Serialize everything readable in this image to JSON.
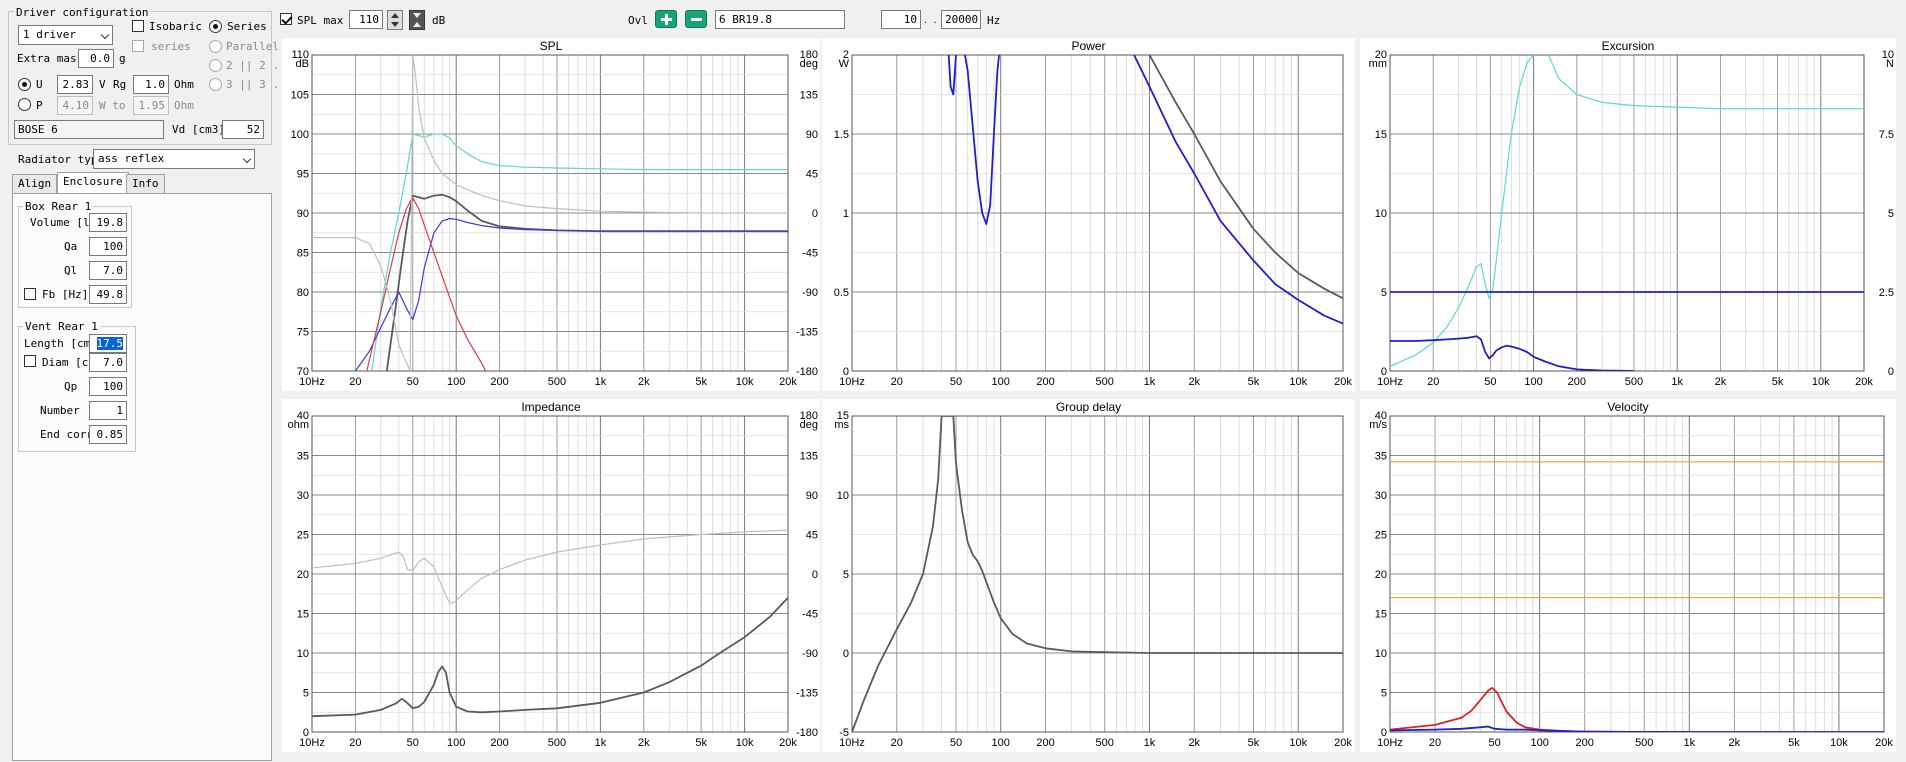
{
  "driver": {
    "title": "Driver configuration",
    "count": "1 driver",
    "isobaric": "Isobaric",
    "series_label": "series",
    "series_radio": "Series",
    "parallel": "Parallel",
    "opt_2x2": "2 || 2 .",
    "opt_3x3": "3 || 3 .",
    "extra_mass_label": "Extra mass",
    "extra_mass": "0.0",
    "extra_mass_unit": "g",
    "u_label": "U",
    "u_value": "2.83",
    "u_unit": "V",
    "rg_label": "Rg",
    "rg_value": "1.0",
    "rg_unit": "Ohm",
    "p_label": "P",
    "p_value": "4.10",
    "w_to": "W to",
    "p_ohm": "1.95",
    "p_ohm_unit": "Ohm",
    "name": "BOSE 6",
    "vd_label": "Vd [cm3]",
    "vd_value": "52"
  },
  "radiator": {
    "label": "Radiator type",
    "value": "ass reflex"
  },
  "tabs": [
    "Align",
    "Enclosure",
    "Info"
  ],
  "box": {
    "title": "Box Rear 1",
    "volume_label": "Volume [l",
    "volume": "19.8",
    "qa_label": "Qa",
    "qa": "100",
    "ql_label": "Ql",
    "ql": "7.0",
    "fb_label": "Fb [Hz]",
    "fb": "49.8"
  },
  "vent": {
    "title": "Vent Rear 1",
    "length_label": "Length [cm",
    "length": "17.5",
    "diam_label": "Diam [cm",
    "diam": "7.0",
    "qp_label": "Qp",
    "qp": "100",
    "number_label": "Number",
    "number": "1",
    "endcorr_label": "End corr",
    "endcorr": "0.85"
  },
  "toolbar": {
    "spl_max_label": "SPL max",
    "spl_max": "110",
    "spl_unit": "dB",
    "ovl_label": "Ovl",
    "project": "6 BR19.8",
    "f_min": "10",
    "f_sep": ". . .",
    "f_max": "20000",
    "f_unit": "Hz"
  },
  "chart_data": [
    {
      "type": "line",
      "title": "SPL",
      "ylabel": "dB",
      "y2label": "deg",
      "xlim": [
        10,
        20000
      ],
      "xscale": "log",
      "xticks": [
        "10Hz",
        "20",
        "50",
        "100",
        "200",
        "500",
        "1k",
        "2k",
        "5k",
        "10k",
        "20k"
      ],
      "ylim": [
        70,
        110
      ],
      "yticks": [
        "110",
        "105",
        "100",
        "95",
        "90",
        "85",
        "80",
        "75",
        "70"
      ],
      "y2lim": [
        -180,
        180
      ],
      "y2ticks": [
        "180",
        "135",
        "90",
        "45",
        "0",
        "-45",
        "-90",
        "-135",
        "-180"
      ],
      "series": [
        {
          "color": "#5ed6d6",
          "axis": "y",
          "x": [
            26,
            30,
            35,
            40,
            45,
            50,
            60,
            70,
            80,
            90,
            100,
            120,
            150,
            200,
            300,
            500,
            1000,
            2000,
            5000,
            10000,
            20000
          ],
          "y": [
            70,
            78,
            85,
            90,
            95,
            100,
            99.6,
            100,
            100,
            99.5,
            98.5,
            97.5,
            96.5,
            96,
            95.8,
            95.7,
            95.6,
            95.5,
            95.5,
            95.5,
            95.5
          ]
        },
        {
          "color": "#5a5a5a",
          "axis": "y",
          "x": [
            33,
            38,
            42,
            46,
            50,
            55,
            60,
            70,
            80,
            90,
            100,
            120,
            150,
            200,
            300,
            500,
            1000,
            2000,
            5000,
            10000,
            20000
          ],
          "y": [
            70,
            78,
            84,
            89,
            92.2,
            92,
            91.8,
            92.2,
            92.3,
            92,
            91.5,
            90.3,
            89,
            88.3,
            88,
            87.8,
            87.7,
            87.7,
            87.7,
            87.7,
            87.7
          ]
        },
        {
          "color": "#3a3adf",
          "axis": "y",
          "x": [
            20,
            25,
            30,
            35,
            40,
            45,
            50,
            55,
            60,
            70,
            80,
            90,
            100,
            120,
            150,
            200,
            300,
            500,
            1000,
            2000,
            5000,
            10000,
            20000
          ],
          "y": [
            70,
            72.5,
            75.5,
            78,
            80,
            78,
            76.5,
            79,
            83,
            87.5,
            89,
            89.3,
            89.2,
            88.8,
            88.4,
            88.1,
            87.9,
            87.8,
            87.7,
            87.7,
            87.7,
            87.7,
            87.7
          ]
        },
        {
          "color": "#d94040",
          "axis": "y",
          "x": [
            24,
            30,
            35,
            40,
            45,
            49.8,
            55,
            60,
            70,
            80,
            100,
            120,
            150,
            160
          ],
          "y": [
            70,
            77.5,
            83,
            87.5,
            90.5,
            92,
            90.5,
            88.5,
            85,
            82,
            77,
            74,
            71,
            70
          ]
        },
        {
          "color": "#bfbfbf",
          "axis": "y2",
          "x": [
            10,
            20,
            25,
            30,
            35,
            40,
            45,
            48,
            50,
            52,
            55,
            60,
            70,
            80,
            100,
            150,
            200,
            300,
            500,
            1000,
            2000,
            5000,
            10000,
            20000
          ],
          "y": [
            -28,
            -28,
            -35,
            -60,
            -100,
            -150,
            -170,
            -180,
            180,
            160,
            120,
            85,
            60,
            45,
            32,
            20,
            14,
            8,
            5,
            2,
            1,
            0,
            0,
            0
          ]
        }
      ]
    },
    {
      "type": "line",
      "title": "Power",
      "ylabel": "W",
      "xlim": [
        10,
        20000
      ],
      "xscale": "log",
      "xticks": [
        "10Hz",
        "20",
        "50",
        "100",
        "200",
        "500",
        "1k",
        "2k",
        "5k",
        "10k",
        "20k"
      ],
      "ylim": [
        0,
        2
      ],
      "yticks": [
        "2",
        "1.5",
        "1",
        "0.5",
        "0"
      ],
      "series": [
        {
          "color": "#5a5a5a",
          "x": [
            900,
            1000,
            1500,
            2000,
            3000,
            5000,
            7000,
            10000,
            15000,
            20000
          ],
          "y": [
            2.1,
            2.0,
            1.7,
            1.5,
            1.2,
            0.9,
            0.75,
            0.62,
            0.52,
            0.46
          ]
        },
        {
          "color": "#1f1fcc",
          "x": [
            44,
            46,
            48,
            50,
            55,
            60,
            70,
            75,
            80,
            85,
            90,
            95,
            100
          ],
          "y": [
            2.1,
            1.8,
            1.75,
            2.0,
            2.1,
            1.9,
            1.2,
            1.0,
            0.93,
            1.05,
            1.5,
            1.9,
            2.1
          ]
        },
        {
          "color": "#1f1fcc",
          "x": [
            700,
            1000,
            1500,
            2000,
            3000,
            5000,
            7000,
            10000,
            15000,
            20000
          ],
          "y": [
            2.1,
            1.8,
            1.45,
            1.25,
            0.95,
            0.7,
            0.55,
            0.45,
            0.35,
            0.3
          ]
        }
      ]
    },
    {
      "type": "line",
      "title": "Excursion",
      "ylabel": "mm",
      "y2label": "N",
      "xlim": [
        10,
        20000
      ],
      "xscale": "log",
      "xticks": [
        "10Hz",
        "20",
        "50",
        "100",
        "200",
        "500",
        "1k",
        "2k",
        "5k",
        "10k",
        "20k"
      ],
      "ylim": [
        0,
        20
      ],
      "yticks": [
        "20",
        "15",
        "10",
        "5",
        "0"
      ],
      "y2lim": [
        0,
        10
      ],
      "y2ticks": [
        "10",
        "7.5",
        "5",
        "2.5",
        "0"
      ],
      "series": [
        {
          "color": "#5ed6d6",
          "x": [
            10,
            15,
            20,
            25,
            30,
            35,
            40,
            43,
            46,
            49,
            52,
            55,
            60,
            70,
            80,
            90,
            100,
            120,
            150,
            200,
            300,
            500,
            1000,
            2000,
            5000,
            10000,
            20000
          ],
          "y": [
            0.3,
            1.0,
            1.8,
            2.8,
            4.0,
            5.3,
            6.6,
            6.8,
            5.5,
            4.6,
            5.2,
            7,
            10,
            15,
            18,
            19.5,
            20,
            20.5,
            18.5,
            17.5,
            17,
            16.8,
            16.7,
            16.6,
            16.6,
            16.6,
            16.6
          ]
        },
        {
          "color": "#1f1fcc",
          "x": [
            10,
            100,
            1000,
            10000,
            20000
          ],
          "y": [
            5,
            5,
            5,
            5,
            5
          ]
        },
        {
          "color": "#1f1fcc",
          "x": [
            10,
            15,
            20,
            25,
            30,
            35,
            40,
            43,
            46,
            49,
            52,
            55,
            60,
            65,
            70,
            80,
            90,
            100,
            120,
            150,
            200,
            300,
            400,
            500
          ],
          "y": [
            1.9,
            1.9,
            1.95,
            2.0,
            2.05,
            2.1,
            2.2,
            2.0,
            1.2,
            0.8,
            1.0,
            1.3,
            1.5,
            1.6,
            1.55,
            1.4,
            1.2,
            0.9,
            0.6,
            0.3,
            0.1,
            0.03,
            0.01,
            0
          ]
        }
      ]
    },
    {
      "type": "line",
      "title": "Impedance",
      "ylabel": "ohm",
      "y2label": "deg",
      "xlim": [
        10,
        20000
      ],
      "xscale": "log",
      "xticks": [
        "10Hz",
        "20",
        "50",
        "100",
        "200",
        "500",
        "1k",
        "2k",
        "5k",
        "10k",
        "20k"
      ],
      "ylim": [
        0,
        40
      ],
      "yticks": [
        "40",
        "35",
        "30",
        "25",
        "20",
        "15",
        "10",
        "5",
        "0"
      ],
      "y2lim": [
        -180,
        180
      ],
      "y2ticks": [
        "180",
        "135",
        "90",
        "45",
        "0",
        "-45",
        "-90",
        "-135",
        "-180"
      ],
      "series": [
        {
          "color": "#5a5a5a",
          "x": [
            10,
            20,
            30,
            38,
            42,
            45,
            50,
            55,
            60,
            70,
            75,
            80,
            85,
            90,
            100,
            120,
            150,
            200,
            300,
            500,
            1000,
            2000,
            3000,
            5000,
            7000,
            10000,
            15000,
            20000
          ],
          "y": [
            2.0,
            2.2,
            2.8,
            3.6,
            4.2,
            3.8,
            3.0,
            3.2,
            3.8,
            6,
            7.6,
            8.3,
            7.5,
            5,
            3.2,
            2.6,
            2.5,
            2.6,
            2.8,
            3.0,
            3.7,
            5.0,
            6.3,
            8.4,
            10.2,
            12.0,
            14.6,
            17
          ]
        },
        {
          "color": "#bfbfbf",
          "axis": "y2",
          "x": [
            10,
            20,
            30,
            40,
            43,
            46,
            50,
            55,
            60,
            70,
            80,
            90,
            95,
            100,
            120,
            150,
            200,
            300,
            500,
            1000,
            2000,
            5000,
            10000,
            20000
          ],
          "y": [
            7,
            12,
            18,
            25,
            20,
            5,
            4,
            14,
            18,
            8,
            -15,
            -33,
            -33,
            -30,
            -18,
            -5,
            5,
            16,
            25,
            33,
            40,
            45,
            48,
            50
          ]
        }
      ]
    },
    {
      "type": "line",
      "title": "Group delay",
      "ylabel": "ms",
      "xlim": [
        10,
        20000
      ],
      "xscale": "log",
      "xticks": [
        "10Hz",
        "20",
        "50",
        "100",
        "200",
        "500",
        "1k",
        "2k",
        "5k",
        "10k",
        "20k"
      ],
      "ylim": [
        -5,
        15
      ],
      "yticks": [
        "15",
        "10",
        "5",
        "0",
        "-5"
      ],
      "series": [
        {
          "color": "#5a5a5a",
          "x": [
            10,
            12,
            15,
            20,
            25,
            30,
            35,
            38,
            40,
            44,
            48,
            50,
            55,
            60,
            65,
            70,
            75,
            80,
            90,
            100,
            120,
            150,
            200,
            300,
            500,
            1000,
            2000,
            5000,
            10000,
            20000
          ],
          "y": [
            -5,
            -3,
            -0.8,
            1.5,
            3.2,
            5.0,
            8.0,
            11,
            15,
            15,
            15,
            12,
            9,
            7,
            6.2,
            5.8,
            5.2,
            4.5,
            3.2,
            2.2,
            1.2,
            0.6,
            0.3,
            0.1,
            0.05,
            0,
            0,
            0,
            0,
            0
          ]
        }
      ]
    },
    {
      "type": "line",
      "title": "Velocity",
      "ylabel": "m/s",
      "xlim": [
        10,
        20000
      ],
      "xscale": "log",
      "xticks": [
        "10Hz",
        "20",
        "50",
        "100",
        "200",
        "500",
        "1k",
        "2k",
        "5k",
        "10k",
        "20k"
      ],
      "ylim": [
        0,
        40
      ],
      "yticks": [
        "40",
        "35",
        "30",
        "25",
        "20",
        "15",
        "10",
        "5",
        "0"
      ],
      "series": [
        {
          "color": "#f0a020",
          "x": [
            10,
            20000
          ],
          "y": [
            34.2,
            34.2
          ]
        },
        {
          "color": "#f0a020",
          "x": [
            10,
            20000
          ],
          "y": [
            17,
            17
          ]
        },
        {
          "color": "#e02020",
          "x": [
            10,
            20,
            30,
            35,
            40,
            45,
            48,
            52,
            55,
            60,
            70,
            80,
            100,
            150,
            200,
            300,
            500,
            1000
          ],
          "y": [
            0.3,
            0.9,
            1.8,
            2.7,
            4,
            5.2,
            5.6,
            5,
            4,
            2.6,
            1.2,
            0.6,
            0.3,
            0.1,
            0.05,
            0.02,
            0,
            0
          ]
        },
        {
          "color": "#1f1fcc",
          "x": [
            10,
            20,
            30,
            40,
            45,
            50,
            60,
            80,
            100,
            200,
            500,
            1000,
            20000
          ],
          "y": [
            0.2,
            0.3,
            0.4,
            0.6,
            0.7,
            0.4,
            0.3,
            0.3,
            0.2,
            0.05,
            0,
            0,
            0
          ]
        }
      ]
    }
  ]
}
